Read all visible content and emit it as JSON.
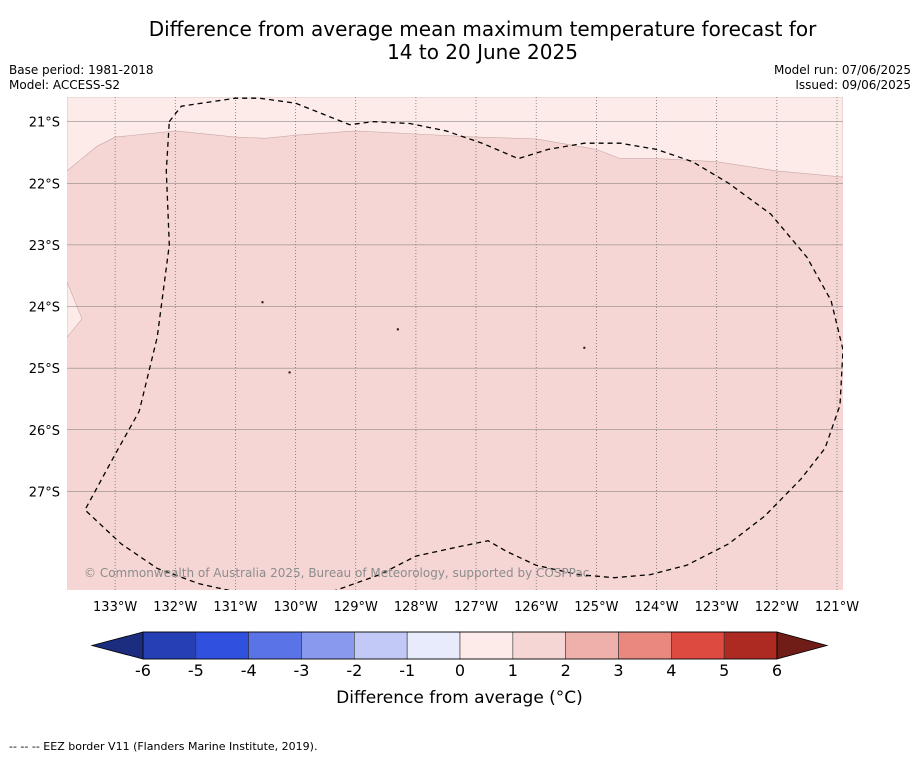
{
  "title_line1": "Difference from average mean maximum temperature forecast for",
  "title_line2": "14 to 20 June 2025",
  "base_period": "Base period: 1981-2018",
  "model": "Model: ACCESS-S2",
  "model_run": "Model run: 07/06/2025",
  "issued": "Issued: 09/06/2025",
  "copyright": "© Commonwealth of Australia 2025, Bureau of Meteorology, supported by COSPPac",
  "footnote": "--  --  -- EEZ border V11 (Flanders Marine Institute, 2019).",
  "map": {
    "lon_range": [
      -133.8,
      -120.9
    ],
    "lat_range": [
      -28.6,
      -20.6
    ],
    "lon_ticks": [
      {
        "value": -133,
        "label": "133°W"
      },
      {
        "value": -132,
        "label": "132°W"
      },
      {
        "value": -131,
        "label": "131°W"
      },
      {
        "value": -130,
        "label": "130°W"
      },
      {
        "value": -129,
        "label": "129°W"
      },
      {
        "value": -128,
        "label": "128°W"
      },
      {
        "value": -127,
        "label": "127°W"
      },
      {
        "value": -126,
        "label": "126°W"
      },
      {
        "value": -125,
        "label": "125°W"
      },
      {
        "value": -124,
        "label": "124°W"
      },
      {
        "value": -123,
        "label": "123°W"
      },
      {
        "value": -122,
        "label": "122°W"
      },
      {
        "value": -121,
        "label": "121°W"
      }
    ],
    "lat_ticks": [
      {
        "value": -21,
        "label": "21°S"
      },
      {
        "value": -22,
        "label": "22°S"
      },
      {
        "value": -23,
        "label": "23°S"
      },
      {
        "value": -24,
        "label": "24°S"
      },
      {
        "value": -25,
        "label": "25°S"
      },
      {
        "value": -26,
        "label": "26°S"
      },
      {
        "value": -27,
        "label": "27°S"
      }
    ],
    "fill_color_0_1": "#fcebe9",
    "fill_color_1_2": "#f5d6d4",
    "boundary_1_north_west": [
      [
        -133.8,
        -21.8
      ],
      [
        -133.3,
        -21.4
      ],
      [
        -133.0,
        -21.25
      ],
      [
        -132.0,
        -21.15
      ],
      [
        -131.0,
        -21.25
      ],
      [
        -130.5,
        -21.27
      ],
      [
        -130.0,
        -21.22
      ],
      [
        -129.0,
        -21.15
      ],
      [
        -128.0,
        -21.2
      ],
      [
        -127.0,
        -21.25
      ],
      [
        -126.0,
        -21.28
      ],
      [
        -125.0,
        -21.45
      ],
      [
        -124.6,
        -21.6
      ],
      [
        -124.0,
        -21.6
      ],
      [
        -123.0,
        -21.65
      ],
      [
        -122.0,
        -21.8
      ],
      [
        -120.9,
        -21.9
      ]
    ],
    "boundary_1_west_notch": [
      [
        -133.8,
        -23.6
      ],
      [
        -133.55,
        -24.2
      ],
      [
        -133.8,
        -24.5
      ]
    ],
    "eez_border": [
      [
        -132.1,
        -21.0
      ],
      [
        -131.9,
        -20.75
      ],
      [
        -131.0,
        -20.62
      ],
      [
        -130.6,
        -20.62
      ],
      [
        -130.0,
        -20.7
      ],
      [
        -129.1,
        -21.05
      ],
      [
        -128.7,
        -21.0
      ],
      [
        -128.1,
        -21.03
      ],
      [
        -127.5,
        -21.15
      ],
      [
        -126.9,
        -21.35
      ],
      [
        -126.3,
        -21.6
      ],
      [
        -125.8,
        -21.45
      ],
      [
        -125.2,
        -21.35
      ],
      [
        -124.6,
        -21.35
      ],
      [
        -124.0,
        -21.45
      ],
      [
        -123.4,
        -21.65
      ],
      [
        -122.8,
        -22.0
      ],
      [
        -122.1,
        -22.5
      ],
      [
        -121.5,
        -23.2
      ],
      [
        -121.1,
        -23.9
      ],
      [
        -120.9,
        -24.7
      ],
      [
        -120.95,
        -25.6
      ],
      [
        -121.2,
        -26.3
      ],
      [
        -121.6,
        -26.8
      ],
      [
        -122.2,
        -27.4
      ],
      [
        -122.8,
        -27.85
      ],
      [
        -123.5,
        -28.2
      ],
      [
        -124.1,
        -28.35
      ],
      [
        -124.7,
        -28.4
      ],
      [
        -125.3,
        -28.35
      ],
      [
        -126.0,
        -28.2
      ],
      [
        -126.5,
        -27.97
      ],
      [
        -126.8,
        -27.8
      ],
      [
        -127.3,
        -27.9
      ],
      [
        -128.0,
        -28.05
      ],
      [
        -128.6,
        -28.35
      ],
      [
        -129.4,
        -28.63
      ],
      [
        -130.0,
        -28.68
      ],
      [
        -130.5,
        -28.68
      ],
      [
        -131.0,
        -28.63
      ],
      [
        -131.6,
        -28.5
      ],
      [
        -132.3,
        -28.25
      ],
      [
        -132.9,
        -27.85
      ],
      [
        -133.5,
        -27.3
      ],
      [
        -133.0,
        -26.4
      ],
      [
        -132.6,
        -25.7
      ],
      [
        -132.3,
        -24.5
      ],
      [
        -132.1,
        -23.0
      ],
      [
        -132.15,
        -21.8
      ],
      [
        -132.1,
        -21.0
      ]
    ],
    "dot_markers": [
      {
        "lon": -130.55,
        "lat": -23.93
      },
      {
        "lon": -128.3,
        "lat": -24.37
      },
      {
        "lon": -125.2,
        "lat": -24.67
      },
      {
        "lon": -130.1,
        "lat": -25.07
      }
    ]
  },
  "colorbar": {
    "label": "Difference from average (°C)",
    "ticks": [
      "-6",
      "-5",
      "-4",
      "-3",
      "-2",
      "-1",
      "0",
      "1",
      "2",
      "3",
      "4",
      "5",
      "6"
    ],
    "bins": [
      {
        "min": -6,
        "max": -5,
        "color": "#2440b4"
      },
      {
        "min": -5,
        "max": -4,
        "color": "#3050e0"
      },
      {
        "min": -4,
        "max": -3,
        "color": "#5a74e8"
      },
      {
        "min": -3,
        "max": -2,
        "color": "#8899ee"
      },
      {
        "min": -2,
        "max": -1,
        "color": "#c2c9f6"
      },
      {
        "min": -1,
        "max": 0,
        "color": "#e8ebfc"
      },
      {
        "min": 0,
        "max": 1,
        "color": "#fcebe9"
      },
      {
        "min": 1,
        "max": 2,
        "color": "#f5d6d4"
      },
      {
        "min": 2,
        "max": 3,
        "color": "#eeb0aa"
      },
      {
        "min": 3,
        "max": 4,
        "color": "#e8887f"
      },
      {
        "min": 4,
        "max": 5,
        "color": "#dc4a40"
      },
      {
        "min": 5,
        "max": 6,
        "color": "#ad2a23"
      }
    ],
    "extend_low_color": "#1c2d80",
    "extend_high_color": "#701d18"
  }
}
